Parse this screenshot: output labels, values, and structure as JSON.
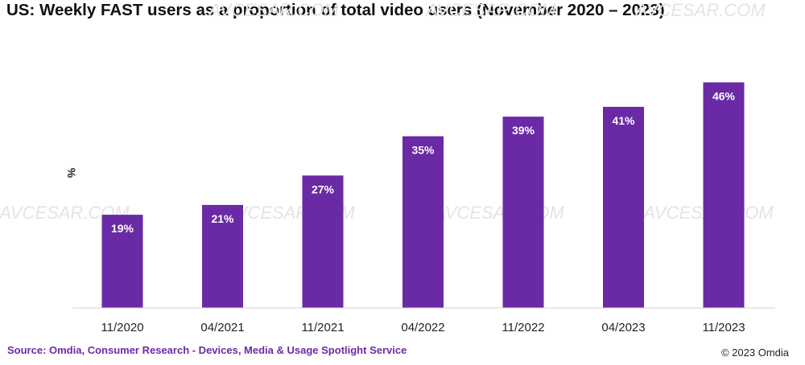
{
  "chart_data": {
    "type": "bar",
    "title": "US: Weekly FAST users as a proportion of total video users (November 2020 – 2023)",
    "ylabel": "%",
    "categories": [
      "11/2020",
      "04/2021",
      "11/2021",
      "04/2022",
      "11/2022",
      "04/2023",
      "11/2023"
    ],
    "values": [
      19,
      21,
      27,
      35,
      39,
      41,
      46
    ],
    "value_labels": [
      "19%",
      "21%",
      "27%",
      "35%",
      "39%",
      "41%",
      "46%"
    ],
    "ylim": [
      0,
      50
    ],
    "grid": false,
    "legend": "none",
    "bar_color": "#6a2aa5",
    "label_color": "#ffffff"
  },
  "watermark": "AVCESAR.COM",
  "source": "Source: Omdia, Consumer Research - Devices, Media & Usage Spotlight Service",
  "copyright": "© 2023 Omdia"
}
